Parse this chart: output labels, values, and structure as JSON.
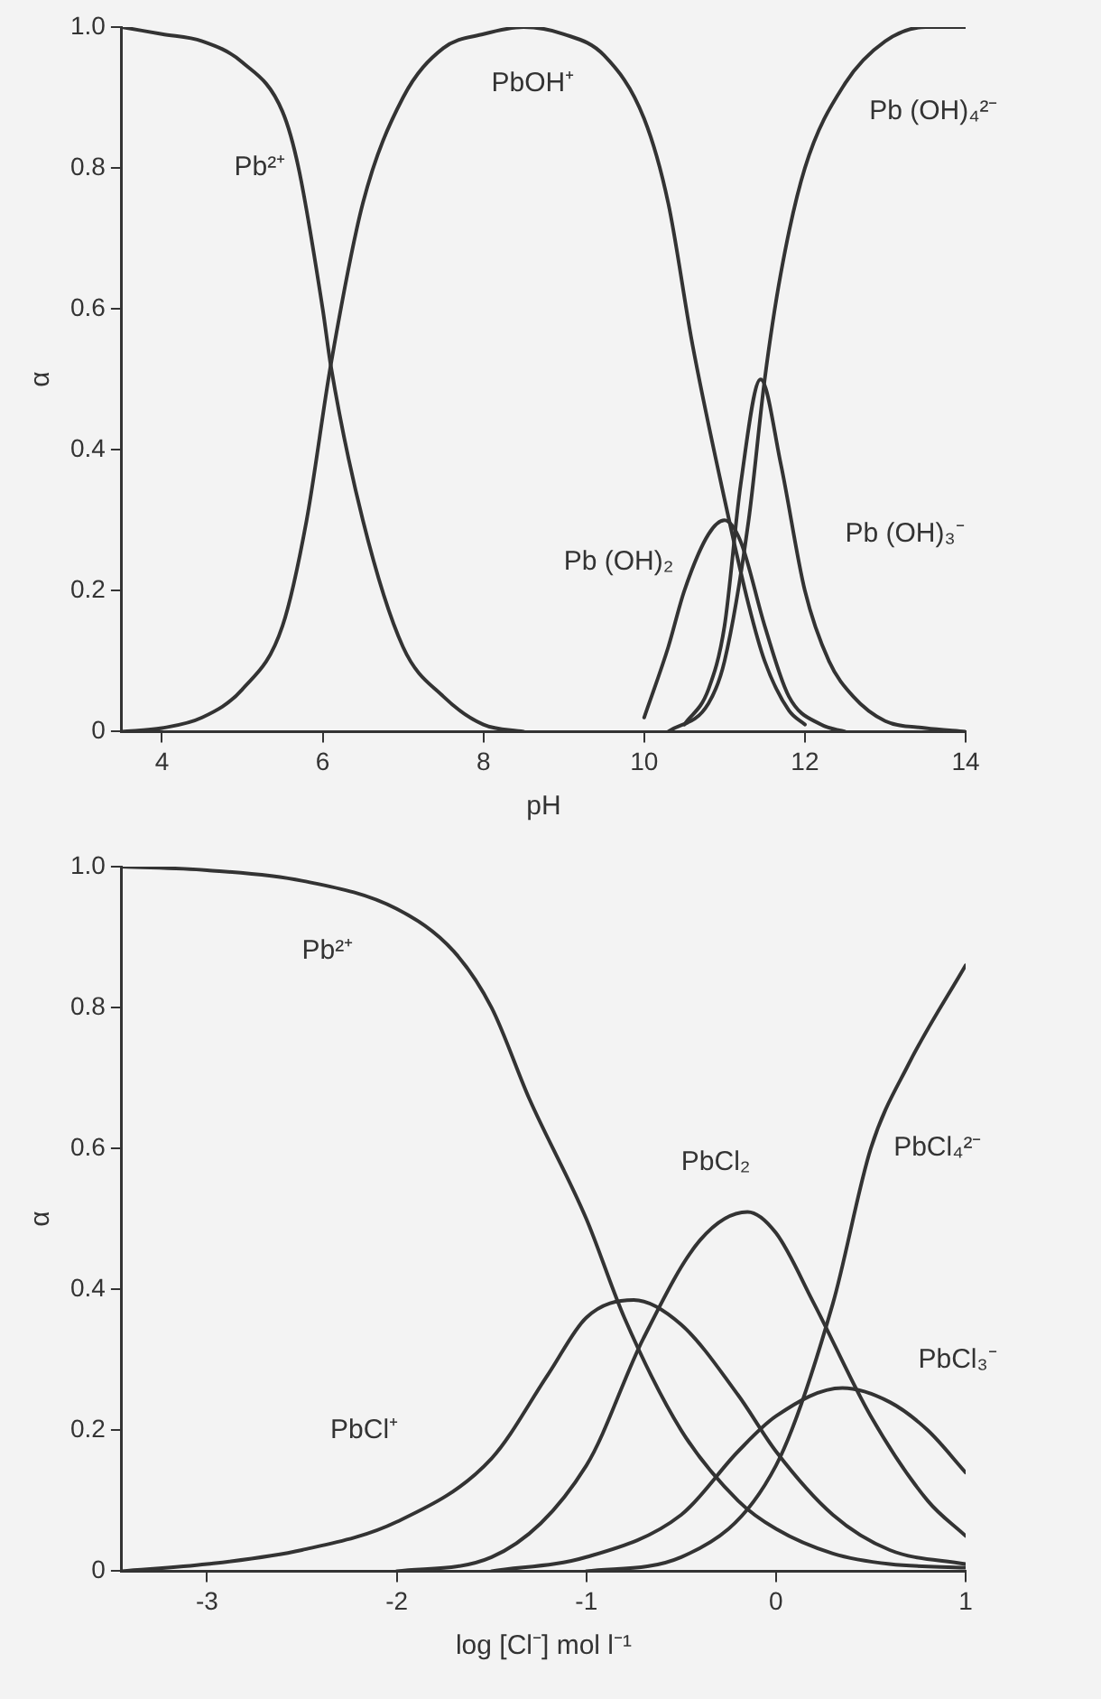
{
  "chart_data": [
    {
      "type": "line",
      "xlabel": "pH",
      "ylabel": "α",
      "xlim": [
        3.5,
        14
      ],
      "xticks": [
        4,
        6,
        8,
        10,
        12,
        14
      ],
      "ylim": [
        0,
        1
      ],
      "yticks": [
        0,
        0.2,
        0.4,
        0.6,
        0.8,
        {
          "value": 1,
          "label": "1.0"
        }
      ],
      "grid": false,
      "legend": false,
      "marker": "none",
      "line_style": "solid",
      "series": [
        {
          "name": "Pb²⁺",
          "color": "#333333",
          "x": [
            3.5,
            4,
            4.5,
            5,
            5.5,
            5.7,
            6,
            6.1,
            6.5,
            7,
            7.5,
            8,
            8.5
          ],
          "values": [
            1,
            0.99,
            0.98,
            0.95,
            0.88,
            0.8,
            0.6,
            0.52,
            0.3,
            0.12,
            0.05,
            0.01,
            0
          ]
        },
        {
          "name": "PbOH⁺",
          "color": "#333333",
          "x": [
            3.5,
            4,
            4.5,
            5,
            5.5,
            5.8,
            6.1,
            6.5,
            7,
            7.5,
            8,
            8.5,
            9,
            9.5,
            10,
            10.3,
            10.6,
            11,
            11.3,
            11.5,
            11.8,
            12
          ],
          "values": [
            0,
            0.005,
            0.02,
            0.06,
            0.15,
            0.3,
            0.52,
            0.75,
            0.9,
            0.97,
            0.99,
            1,
            0.99,
            0.96,
            0.87,
            0.75,
            0.55,
            0.33,
            0.18,
            0.1,
            0.03,
            0.01
          ]
        },
        {
          "name": "Pb (OH)₂",
          "color": "#333333",
          "x": [
            10,
            10.3,
            10.5,
            10.8,
            11,
            11.2,
            11.5,
            11.8,
            12.2,
            12.5
          ],
          "values": [
            0.02,
            0.12,
            0.2,
            0.28,
            0.3,
            0.27,
            0.15,
            0.05,
            0.01,
            0
          ]
        },
        {
          "name": "Pb (OH)₃⁻",
          "color": "#333333",
          "x": [
            10.5,
            10.8,
            11,
            11.2,
            11.45,
            11.7,
            12,
            12.3,
            12.6,
            13,
            13.5,
            14
          ],
          "values": [
            0.01,
            0.06,
            0.15,
            0.35,
            0.5,
            0.38,
            0.2,
            0.1,
            0.05,
            0.015,
            0.005,
            0
          ]
        },
        {
          "name": "Pb (OH)₄²⁻",
          "color": "#333333",
          "x": [
            10.3,
            10.8,
            11,
            11.3,
            11.5,
            11.7,
            12,
            12.5,
            13,
            13.5,
            14
          ],
          "values": [
            0,
            0.04,
            0.1,
            0.3,
            0.5,
            0.65,
            0.8,
            0.92,
            0.98,
            1,
            1
          ]
        }
      ]
    },
    {
      "type": "line",
      "xlabel": "log [Cl⁻] mol l⁻¹",
      "ylabel": "α",
      "xlim": [
        -3.45,
        1
      ],
      "xticks": [
        -3,
        -2,
        -1,
        0,
        1
      ],
      "ylim": [
        0,
        1
      ],
      "yticks": [
        0,
        0.2,
        0.4,
        0.6,
        0.8,
        {
          "value": 1,
          "label": "1.0"
        }
      ],
      "grid": false,
      "legend": false,
      "marker": "none",
      "line_style": "solid",
      "series": [
        {
          "name": "Pb²⁺",
          "color": "#333333",
          "x": [
            -3.45,
            -3,
            -2.5,
            -2,
            -1.7,
            -1.5,
            -1.3,
            -1,
            -0.8,
            -0.5,
            -0.2,
            0,
            0.3,
            0.6,
            1
          ],
          "values": [
            1,
            0.995,
            0.98,
            0.94,
            0.88,
            0.8,
            0.67,
            0.5,
            0.36,
            0.2,
            0.1,
            0.06,
            0.025,
            0.01,
            0.005
          ]
        },
        {
          "name": "PbCl⁺",
          "color": "#333333",
          "x": [
            -3.45,
            -3,
            -2.5,
            -2,
            -1.5,
            -1.2,
            -1,
            -0.75,
            -0.5,
            -0.2,
            0,
            0.3,
            0.6,
            1
          ],
          "values": [
            0,
            0.01,
            0.03,
            0.07,
            0.16,
            0.28,
            0.36,
            0.385,
            0.35,
            0.25,
            0.17,
            0.08,
            0.03,
            0.01
          ]
        },
        {
          "name": "PbCl₂",
          "color": "#333333",
          "x": [
            -2,
            -1.5,
            -1,
            -0.7,
            -0.4,
            -0.15,
            0,
            0.2,
            0.5,
            0.8,
            1
          ],
          "values": [
            0,
            0.02,
            0.15,
            0.33,
            0.47,
            0.51,
            0.48,
            0.38,
            0.22,
            0.1,
            0.05
          ]
        },
        {
          "name": "PbCl₃⁻",
          "color": "#333333",
          "x": [
            -1.5,
            -1,
            -0.5,
            -0.2,
            0,
            0.35,
            0.6,
            0.8,
            1
          ],
          "values": [
            0,
            0.02,
            0.08,
            0.17,
            0.22,
            0.26,
            0.24,
            0.2,
            0.14
          ]
        },
        {
          "name": "PbCl₄²⁻",
          "color": "#333333",
          "x": [
            -1,
            -0.5,
            0,
            0.3,
            0.5,
            0.7,
            1
          ],
          "values": [
            0,
            0.02,
            0.15,
            0.38,
            0.6,
            0.72,
            0.86
          ]
        }
      ]
    }
  ]
}
